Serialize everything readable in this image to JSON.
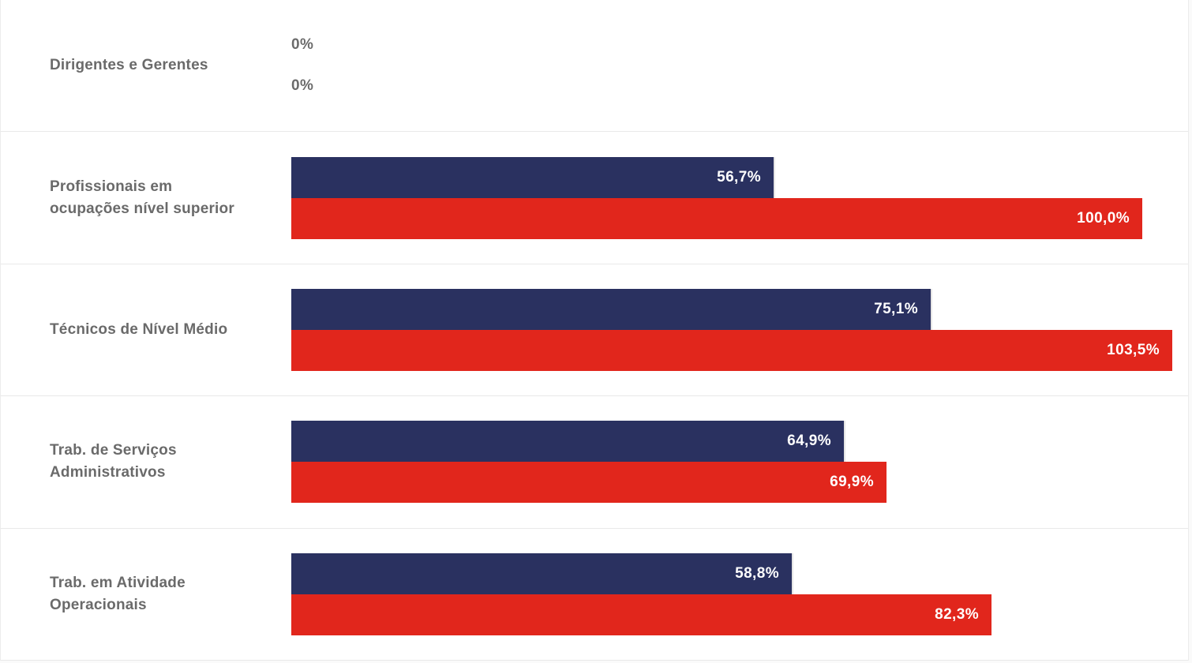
{
  "page": {
    "background": "#fafafa",
    "panel_background": "#ffffff",
    "divider_color": "#e9e9e9",
    "border_color": "#ececec"
  },
  "chart_data": {
    "type": "bar",
    "orientation": "horizontal",
    "title": "",
    "legend": "none",
    "gridlines": false,
    "value_suffix": "%",
    "xlim": [
      0,
      106
    ],
    "categories": [
      "Dirigentes e Gerentes",
      "Profissionais em ocupações nível superior",
      "Técnicos de Nível Médio",
      "Trab. de Serviços Administrativos",
      "Trab. em Atividade Operacionais"
    ],
    "category_label_lines": [
      [
        "Dirigentes e Gerentes"
      ],
      [
        "Profissionais em",
        "ocupações nível superior"
      ],
      [
        "Técnicos de Nível Médio"
      ],
      [
        "Trab. de Serviços",
        "Administrativos"
      ],
      [
        "Trab. em Atividade",
        "Operacionais"
      ]
    ],
    "series": [
      {
        "name": "series-1-navy",
        "color": "#2a3160",
        "values": [
          0,
          56.7,
          75.1,
          64.9,
          58.8
        ],
        "labels": [
          "0%",
          "56,7%",
          "75,1%",
          "64,9%",
          "58,8%"
        ]
      },
      {
        "name": "series-2-red",
        "color": "#e1261c",
        "values": [
          0,
          100.0,
          103.5,
          69.9,
          82.3
        ],
        "labels": [
          "0%",
          "100,0%",
          "103,5%",
          "69,9%",
          "82,3%"
        ]
      }
    ],
    "colors": {
      "category_label": "#6a6a6a",
      "value_label_inside": "#ffffff",
      "value_label_zero": "#6b6b6b"
    }
  }
}
